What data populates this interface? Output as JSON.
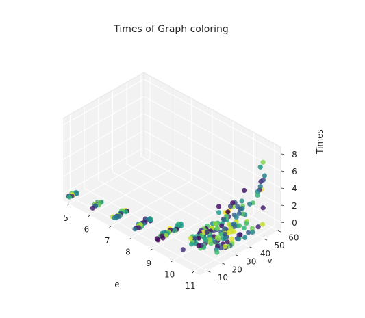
{
  "chart_data": {
    "type": "scatter3d",
    "title": "Times of Graph coloring",
    "xlabel": "e",
    "ylabel": "v",
    "zlabel": "Times",
    "x_ticks": [
      "5",
      "6",
      "7",
      "8",
      "9",
      "10",
      "11"
    ],
    "y_ticks": [
      "10",
      "20",
      "30",
      "40",
      "50",
      "60"
    ],
    "z_ticks": [
      "0",
      "2",
      "4",
      "6",
      "8"
    ],
    "xlim": [
      4.7,
      11.3
    ],
    "ylim": [
      5,
      62
    ],
    "zlim": [
      -0.8,
      8.8
    ],
    "colormap": "viridis",
    "pane_color": "#f2f2f2",
    "grid": true,
    "groups": [
      {
        "e": 5,
        "v_range": [
          5,
          10
        ],
        "t_max": 0.05,
        "count": 10
      },
      {
        "e": 6,
        "v_range": [
          5,
          13
        ],
        "t_max": 0.1,
        "count": 14
      },
      {
        "e": 7,
        "v_range": [
          6,
          16
        ],
        "t_max": 0.2,
        "count": 18
      },
      {
        "e": 8,
        "v_range": [
          7,
          20
        ],
        "t_max": 0.6,
        "count": 28
      },
      {
        "e": 9,
        "v_range": [
          8,
          25
        ],
        "t_max": 0.6,
        "count": 30
      },
      {
        "e": 10,
        "v_range": [
          10,
          35
        ],
        "t_max": 1.0,
        "count": 40
      },
      {
        "e": 10.5,
        "v_range": [
          15,
          45
        ],
        "t_max": 3.8,
        "count": 50
      },
      {
        "e": 11,
        "v_range": [
          20,
          55
        ],
        "t_max": 7.5,
        "count": 70
      }
    ],
    "highlight_points": [
      {
        "e": 11,
        "v": 52,
        "t": 7.0
      },
      {
        "e": 10.5,
        "v": 30,
        "t": 3.8
      },
      {
        "e": 10.5,
        "v": 30,
        "t": 3.1
      },
      {
        "e": 11,
        "v": 55,
        "t": 5.7
      },
      {
        "e": 11,
        "v": 54,
        "t": 5.3
      },
      {
        "e": 11,
        "v": 50,
        "t": 4.3
      },
      {
        "e": 11,
        "v": 50,
        "t": 3.9
      }
    ]
  }
}
